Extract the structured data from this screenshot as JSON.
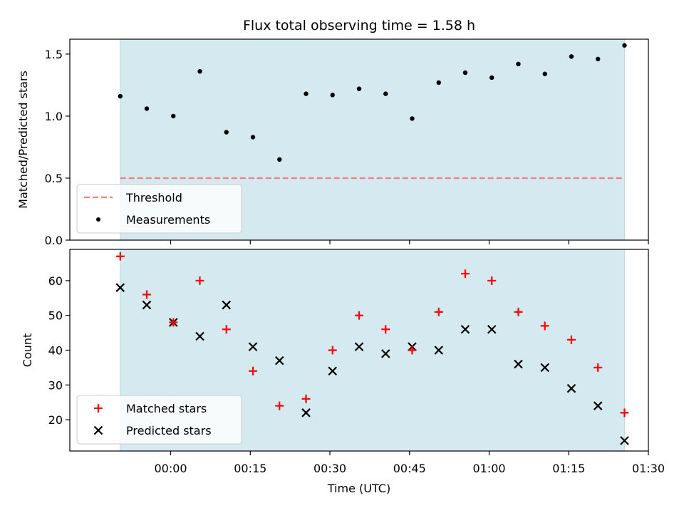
{
  "chart_data": [
    {
      "type": "scatter",
      "title": "Flux total observing time = 1.58 h",
      "ylabel": "Matched/Predicted stars",
      "ylim": [
        0,
        1.62
      ],
      "yticks": [
        "0.0",
        "0.5",
        "1.0",
        "1.5"
      ],
      "ytick_values": [
        0,
        0.5,
        1.0,
        1.5
      ],
      "shaded_band": {
        "x_start_min": -9.5,
        "x_end_min": 85.5,
        "color": "#d4eaf0"
      },
      "threshold": {
        "name": "Threshold",
        "value": 0.5,
        "color": "#f08080",
        "style": "dashed"
      },
      "series": [
        {
          "name": "Measurements",
          "marker": "dot",
          "color": "#000000",
          "x_minutes": [
            -9.5,
            -4.5,
            0.5,
            5.5,
            10.5,
            15.5,
            20.5,
            25.5,
            30.5,
            35.5,
            40.5,
            45.5,
            50.5,
            55.5,
            60.5,
            65.5,
            70.5,
            75.5,
            80.5,
            85.5
          ],
          "values": [
            1.16,
            1.06,
            1.0,
            1.36,
            0.87,
            0.83,
            0.65,
            1.18,
            1.17,
            1.22,
            1.18,
            0.98,
            1.27,
            1.35,
            1.31,
            1.42,
            1.34,
            1.48,
            1.46,
            1.57
          ]
        }
      ],
      "legend": {
        "placement": "lower-left",
        "entries": [
          "Threshold",
          "Measurements"
        ]
      }
    },
    {
      "type": "scatter",
      "ylabel": "Count",
      "xlabel": "Time (UTC)",
      "ylim": [
        11,
        69
      ],
      "yticks": [
        "20",
        "30",
        "40",
        "50",
        "60"
      ],
      "ytick_values": [
        20,
        30,
        40,
        50,
        60
      ],
      "xlim_min": [
        -19,
        90
      ],
      "xticks": [
        "00:00",
        "00:15",
        "00:30",
        "00:45",
        "01:00",
        "01:15",
        "01:30"
      ],
      "xtick_values_min": [
        0,
        15,
        30,
        45,
        60,
        75,
        90
      ],
      "shaded_band": {
        "x_start_min": -9.5,
        "x_end_min": 85.5,
        "color": "#d4eaf0"
      },
      "series": [
        {
          "name": "Matched stars",
          "marker": "plus",
          "color": "#ff0000",
          "x_minutes": [
            -9.5,
            -4.5,
            0.5,
            5.5,
            10.5,
            15.5,
            20.5,
            25.5,
            30.5,
            35.5,
            40.5,
            45.5,
            50.5,
            55.5,
            60.5,
            65.5,
            70.5,
            75.5,
            80.5,
            85.5
          ],
          "values": [
            67,
            56,
            48,
            60,
            46,
            34,
            24,
            26,
            40,
            50,
            46,
            40,
            51,
            62,
            60,
            51,
            47,
            43,
            35,
            22
          ]
        },
        {
          "name": "Predicted stars",
          "marker": "x",
          "color": "#000000",
          "x_minutes": [
            -9.5,
            -4.5,
            0.5,
            5.5,
            10.5,
            15.5,
            20.5,
            25.5,
            30.5,
            35.5,
            40.5,
            45.5,
            50.5,
            55.5,
            60.5,
            65.5,
            70.5,
            75.5,
            80.5,
            85.5
          ],
          "values": [
            58,
            53,
            48,
            44,
            53,
            41,
            37,
            22,
            34,
            41,
            39,
            41,
            40,
            46,
            46,
            36,
            35,
            29,
            24,
            14
          ]
        }
      ],
      "legend": {
        "placement": "lower-left",
        "entries": [
          "Matched stars",
          "Predicted stars"
        ]
      }
    }
  ]
}
